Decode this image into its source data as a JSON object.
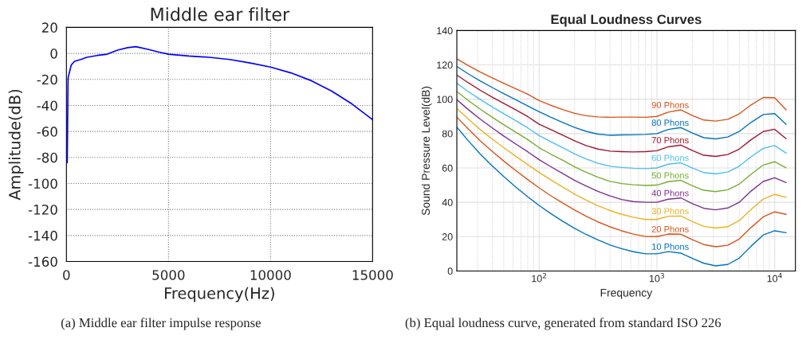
{
  "chart_data": [
    {
      "type": "line",
      "title": "Middle ear filter",
      "xlabel": "Frequency(Hz)",
      "ylabel": "Amplitude(dB)",
      "x": [
        40,
        80,
        235,
        400,
        700,
        1000,
        1500,
        2000,
        2500,
        3000,
        3400,
        4000,
        4500,
        5000,
        6000,
        7000,
        8000,
        9000,
        10000,
        11000,
        12000,
        13000,
        14000,
        15000
      ],
      "series": [
        {
          "color": "#0000ff",
          "values": [
            -84,
            -19,
            -9,
            -6.1,
            -4.7,
            -3,
            -1.6,
            -0.6,
            2.5,
            4.4,
            5.2,
            3.1,
            1.1,
            -0.6,
            -2,
            -3,
            -4.7,
            -7.4,
            -10.5,
            -15,
            -21,
            -29,
            -39,
            -51
          ]
        }
      ],
      "xlim": [
        0,
        15000
      ],
      "xticks": [
        0,
        5000,
        10000,
        15000
      ],
      "ylim": [
        -160,
        20
      ],
      "yticks": [
        -160,
        -140,
        -120,
        -100,
        -80,
        -60,
        -40,
        -20,
        0,
        20
      ],
      "grid": true,
      "annotations": [
        "(a) Middle ear filter impulse response"
      ]
    },
    {
      "type": "line",
      "title": "Equal Loudness Curves",
      "xlabel": "Frequency",
      "ylabel": "Sound Pressure Level(dB)",
      "log": "x",
      "x": [
        20,
        25,
        31.5,
        40,
        50,
        63,
        80,
        100,
        125,
        160,
        200,
        250,
        315,
        400,
        500,
        630,
        800,
        1000,
        1250,
        1600,
        2000,
        2500,
        3150,
        4000,
        5000,
        6300,
        8000,
        10000,
        12500
      ],
      "series": [
        {
          "name": "10 Phons",
          "color": "#0072bd",
          "values": [
            83.8,
            75.8,
            68.2,
            61.1,
            55.0,
            49.0,
            43.2,
            38.1,
            33.5,
            28.8,
            24.8,
            21.3,
            18.1,
            15.1,
            13.0,
            11.2,
            10.0,
            10.0,
            11.3,
            10.4,
            7.3,
            4.5,
            3.0,
            3.8,
            7.5,
            14.4,
            21.0,
            23.4,
            22.3
          ]
        },
        {
          "name": "20 Phons",
          "color": "#d95319",
          "values": [
            89.6,
            82.7,
            75.9,
            69.6,
            64.0,
            58.6,
            53.2,
            48.4,
            43.9,
            39.4,
            35.5,
            31.9,
            28.6,
            25.7,
            23.4,
            21.5,
            20.1,
            20.0,
            21.5,
            21.4,
            18.2,
            15.4,
            14.1,
            15.0,
            18.6,
            25.3,
            31.5,
            34.4,
            33.0
          ]
        },
        {
          "name": "30 Phons",
          "color": "#edb120",
          "values": [
            94.6,
            88.5,
            82.4,
            76.8,
            71.8,
            66.9,
            61.9,
            57.4,
            53.1,
            48.7,
            44.8,
            41.3,
            38.0,
            35.2,
            33.0,
            31.3,
            30.0,
            30.0,
            31.9,
            32.0,
            28.8,
            26.0,
            25.0,
            25.8,
            29.3,
            35.8,
            41.9,
            44.6,
            42.9
          ]
        },
        {
          "name": "40 Phons",
          "color": "#7e2f8e",
          "values": [
            99.7,
            94.0,
            88.5,
            83.3,
            78.6,
            74.0,
            69.4,
            64.8,
            60.8,
            56.6,
            52.8,
            49.5,
            46.4,
            43.7,
            41.6,
            40.4,
            40.0,
            40.0,
            41.8,
            42.5,
            39.2,
            36.5,
            35.6,
            36.7,
            40.0,
            46.5,
            52.1,
            54.3,
            51.5
          ]
        },
        {
          "name": "50 Phons",
          "color": "#77ac30",
          "values": [
            104.5,
            99.3,
            94.3,
            89.5,
            85.2,
            80.9,
            76.5,
            71.8,
            68.1,
            64.3,
            60.6,
            57.5,
            54.6,
            52.2,
            50.9,
            50.2,
            49.8,
            50.0,
            52.0,
            52.8,
            49.6,
            47.0,
            46.2,
            47.3,
            50.6,
            56.3,
            61.7,
            63.6,
            60.1
          ]
        },
        {
          "name": "60 Phons",
          "color": "#4dbeee",
          "values": [
            109.3,
            104.5,
            99.9,
            95.5,
            91.6,
            87.6,
            83.3,
            78.8,
            75.3,
            71.6,
            68.2,
            65.3,
            62.7,
            61.0,
            60.3,
            59.8,
            59.6,
            60.0,
            62.2,
            63.0,
            59.9,
            57.3,
            56.5,
            57.6,
            61.0,
            66.5,
            71.4,
            73.0,
            68.6
          ]
        },
        {
          "name": "70 Phons",
          "color": "#a2142f",
          "values": [
            114.1,
            109.6,
            105.3,
            101.2,
            97.6,
            93.9,
            89.9,
            85.4,
            82.4,
            78.9,
            75.8,
            73.0,
            71.0,
            69.8,
            69.5,
            69.3,
            69.5,
            70.0,
            72.3,
            73.3,
            70.1,
            67.4,
            66.7,
            67.8,
            71.0,
            76.4,
            81.2,
            82.5,
            77.0
          ]
        },
        {
          "name": "80 Phons",
          "color": "#0072bd",
          "values": [
            119.1,
            114.8,
            110.7,
            106.8,
            103.3,
            99.8,
            96.1,
            92.7,
            89.6,
            86.4,
            83.6,
            81.3,
            79.7,
            79.0,
            79.2,
            79.3,
            79.5,
            80.0,
            82.4,
            83.5,
            80.3,
            77.6,
            76.9,
            78.0,
            81.2,
            86.5,
            91.1,
            91.6,
            85.4
          ]
        },
        {
          "name": "90 Phons",
          "color": "#d95319",
          "values": [
            123.5,
            119.6,
            115.9,
            112.4,
            109.3,
            106.2,
            102.9,
            99.2,
            96.5,
            93.9,
            91.8,
            90.4,
            89.7,
            89.5,
            89.6,
            89.6,
            89.5,
            90.0,
            92.5,
            93.8,
            90.5,
            87.9,
            87.3,
            88.3,
            91.5,
            96.7,
            101.0,
            100.9,
            93.8
          ]
        }
      ],
      "xlim": [
        20,
        15000
      ],
      "xticks": [
        {
          "value": 100,
          "label": "10$^{2}$"
        },
        {
          "value": 1000,
          "label": "10$^{3}$"
        },
        {
          "value": 10000,
          "label": "10$^{4}$"
        }
      ],
      "ylim": [
        0,
        140
      ],
      "yticks": [
        0,
        20,
        40,
        60,
        80,
        100,
        120,
        140
      ],
      "grid": true,
      "annotations": [
        "(b) Equal loudness curve, generated from standard ISO 226"
      ]
    }
  ]
}
